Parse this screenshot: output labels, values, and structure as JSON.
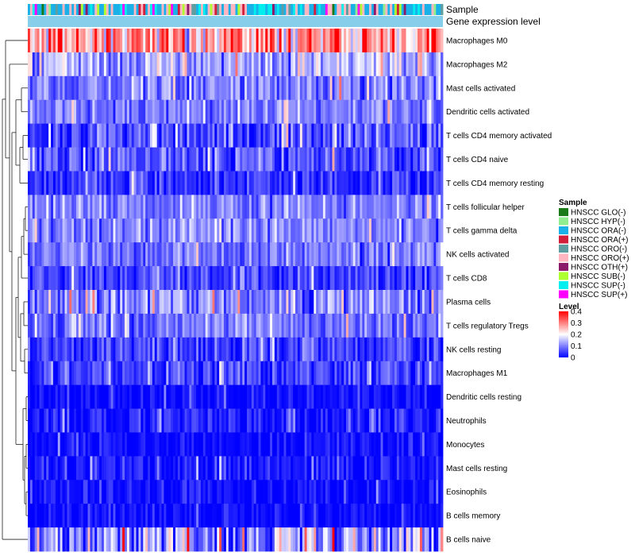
{
  "chart_data": {
    "type": "heatmap",
    "title": "",
    "n_samples": 180,
    "annotation_rows": [
      "Sample",
      "Gene expression level"
    ],
    "rows": [
      {
        "label": "Macrophages M0",
        "mean": 0.27,
        "spread": 0.12
      },
      {
        "label": "Macrophages M2",
        "mean": 0.13,
        "spread": 0.07
      },
      {
        "label": "Mast cells activated",
        "mean": 0.1,
        "spread": 0.06
      },
      {
        "label": "Dendritic cells activated",
        "mean": 0.1,
        "spread": 0.05
      },
      {
        "label": "T cells CD4 memory activated",
        "mean": 0.06,
        "spread": 0.06
      },
      {
        "label": "T cells CD4 naive",
        "mean": 0.07,
        "spread": 0.06
      },
      {
        "label": "T cells CD4 memory resting",
        "mean": 0.04,
        "spread": 0.05
      },
      {
        "label": "T cells follicular helper",
        "mean": 0.1,
        "spread": 0.05
      },
      {
        "label": "T cells gamma delta",
        "mean": 0.1,
        "spread": 0.05
      },
      {
        "label": "NK cells activated",
        "mean": 0.09,
        "spread": 0.05
      },
      {
        "label": "T cells CD8",
        "mean": 0.05,
        "spread": 0.05
      },
      {
        "label": "Plasma cells",
        "mean": 0.1,
        "spread": 0.07
      },
      {
        "label": "T cells regulatory  Tregs",
        "mean": 0.09,
        "spread": 0.05
      },
      {
        "label": "NK cells resting",
        "mean": 0.05,
        "spread": 0.05
      },
      {
        "label": "Macrophages M1",
        "mean": 0.05,
        "spread": 0.05
      },
      {
        "label": "Dendritic cells resting",
        "mean": 0.01,
        "spread": 0.03
      },
      {
        "label": "Neutrophils",
        "mean": 0.02,
        "spread": 0.04
      },
      {
        "label": "Monocytes",
        "mean": 0.01,
        "spread": 0.03
      },
      {
        "label": "Mast cells resting",
        "mean": 0.02,
        "spread": 0.04
      },
      {
        "label": "Eosinophils",
        "mean": 0.01,
        "spread": 0.03
      },
      {
        "label": "B cells memory",
        "mean": 0.01,
        "spread": 0.03
      },
      {
        "label": "B cells naive",
        "mean": 0.12,
        "spread": 0.12
      }
    ],
    "legend": {
      "sample_title": "Sample",
      "sample_entries": [
        {
          "label": "HNSCC GLO(-)",
          "color": "#1a7a1a"
        },
        {
          "label": "HNSCC HYP(-)",
          "color": "#90ee90"
        },
        {
          "label": "HNSCC ORA(-)",
          "color": "#1ab0e8"
        },
        {
          "label": "HNSCC ORA(+)",
          "color": "#d21f3c"
        },
        {
          "label": "HNSCC ORO(-)",
          "color": "#5f9ea0"
        },
        {
          "label": "HNSCC ORO(+)",
          "color": "#ffb6c1"
        },
        {
          "label": "HNSCC OTH(+)",
          "color": "#8b1a6b"
        },
        {
          "label": "HNSCC SUB(-)",
          "color": "#adff2f"
        },
        {
          "label": "HNSCC SUP(-)",
          "color": "#00eeee"
        },
        {
          "label": "HNSCC SUP(+)",
          "color": "#ff00ff"
        }
      ],
      "level_title": "Level",
      "level_ticks": [
        "0.4",
        "0.3",
        "0.2",
        "0.1",
        "0"
      ],
      "level_range": [
        0,
        0.4
      ],
      "colormap": [
        "#0000ff",
        "#ffffff",
        "#ff0000"
      ]
    },
    "gene_expression_color": "#87ceeb"
  }
}
